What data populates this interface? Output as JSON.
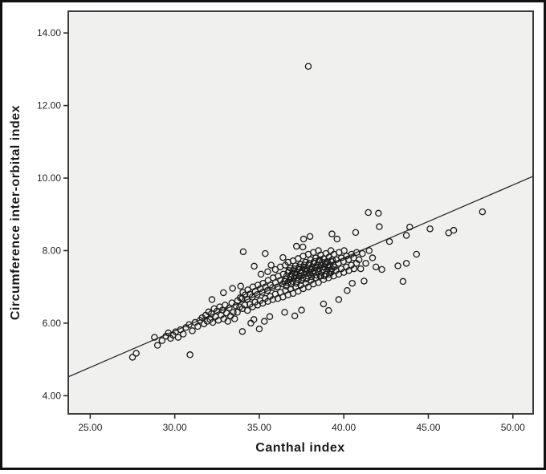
{
  "figure": {
    "xlabel": "Canthal index",
    "ylabel": "Circumference inter-orbital index"
  },
  "chart_data": {
    "type": "scatter",
    "title": "",
    "xlabel": "Canthal index",
    "ylabel": "Circumference inter-orbital index",
    "xlim": [
      23.7,
      51.2
    ],
    "ylim": [
      3.5,
      14.6
    ],
    "x_ticks": [
      25,
      30,
      35,
      40,
      45,
      50
    ],
    "y_ticks": [
      4,
      6,
      8,
      10,
      12,
      14
    ],
    "tick_decimals": 2,
    "grid": false,
    "legend": "none",
    "plot_bg": "#f0f0ee",
    "plot_border_color": "#3c3c3c",
    "frame_color": "#111111",
    "marker": {
      "shape": "open-circle",
      "radius": 3.6,
      "stroke": "#1c1c1c",
      "stroke_width": 1.3
    },
    "fit_line": {
      "x1": 23.7,
      "y1": 4.52,
      "x2": 51.2,
      "y2": 10.05,
      "stroke": "#2b2b2b",
      "stroke_width": 1.3
    },
    "outlier": [
      37.9,
      13.08
    ],
    "points": [
      [
        27.5,
        5.06
      ],
      [
        27.72,
        5.17
      ],
      [
        28.8,
        5.61
      ],
      [
        28.98,
        5.39
      ],
      [
        29.25,
        5.52
      ],
      [
        29.48,
        5.64
      ],
      [
        29.62,
        5.73
      ],
      [
        29.75,
        5.58
      ],
      [
        29.9,
        5.67
      ],
      [
        30.05,
        5.76
      ],
      [
        30.2,
        5.61
      ],
      [
        30.34,
        5.82
      ],
      [
        30.5,
        5.7
      ],
      [
        30.66,
        5.88
      ],
      [
        30.85,
        5.96
      ],
      [
        30.9,
        5.13
      ],
      [
        31.04,
        5.79
      ],
      [
        31.2,
        6.02
      ],
      [
        31.36,
        5.91
      ],
      [
        31.5,
        6.08
      ],
      [
        31.62,
        6.15
      ],
      [
        31.73,
        5.98
      ],
      [
        31.83,
        6.22
      ],
      [
        31.92,
        6.05
      ],
      [
        32.0,
        6.31
      ],
      [
        32.09,
        6.1
      ],
      [
        32.17,
        6.26
      ],
      [
        32.25,
        6.02
      ],
      [
        32.33,
        6.4
      ],
      [
        32.42,
        6.18
      ],
      [
        32.5,
        6.33
      ],
      [
        32.58,
        6.08
      ],
      [
        32.66,
        6.45
      ],
      [
        32.74,
        6.22
      ],
      [
        32.82,
        6.36
      ],
      [
        32.9,
        6.12
      ],
      [
        32.98,
        6.5
      ],
      [
        33.06,
        6.28
      ],
      [
        33.14,
        6.05
      ],
      [
        33.22,
        6.42
      ],
      [
        33.3,
        6.2
      ],
      [
        33.38,
        6.56
      ],
      [
        33.46,
        6.3
      ],
      [
        33.54,
        6.12
      ],
      [
        33.62,
        6.48
      ],
      [
        32.2,
        6.65
      ],
      [
        32.88,
        6.84
      ],
      [
        33.42,
        6.96
      ],
      [
        33.9,
        7.02
      ],
      [
        34.0,
        5.77
      ],
      [
        34.5,
        6.0
      ],
      [
        35.0,
        5.84
      ],
      [
        34.68,
        6.1
      ],
      [
        35.3,
        6.05
      ],
      [
        35.62,
        6.18
      ],
      [
        36.5,
        6.3
      ],
      [
        37.1,
        6.2
      ],
      [
        37.5,
        6.36
      ],
      [
        38.8,
        6.53
      ],
      [
        39.1,
        6.35
      ],
      [
        39.7,
        6.65
      ],
      [
        34.05,
        7.97
      ],
      [
        35.35,
        7.92
      ],
      [
        34.7,
        7.57
      ],
      [
        35.1,
        7.35
      ],
      [
        35.7,
        7.6
      ],
      [
        36.4,
        7.81
      ],
      [
        35.5,
        7.42
      ],
      [
        35.95,
        7.48
      ],
      [
        33.7,
        6.3
      ],
      [
        33.72,
        6.62
      ],
      [
        33.84,
        6.45
      ],
      [
        33.87,
        6.7
      ],
      [
        34.0,
        6.4
      ],
      [
        33.98,
        6.68
      ],
      [
        34.03,
        6.85
      ],
      [
        34.15,
        6.5
      ],
      [
        34.16,
        6.78
      ],
      [
        34.3,
        6.35
      ],
      [
        34.28,
        6.66
      ],
      [
        34.32,
        6.92
      ],
      [
        34.45,
        6.52
      ],
      [
        34.44,
        6.8
      ],
      [
        34.6,
        6.45
      ],
      [
        34.58,
        6.72
      ],
      [
        34.62,
        7.0
      ],
      [
        34.75,
        6.58
      ],
      [
        34.76,
        6.88
      ],
      [
        34.9,
        6.5
      ],
      [
        34.88,
        6.79
      ],
      [
        34.92,
        7.05
      ],
      [
        35.05,
        6.62
      ],
      [
        35.06,
        6.95
      ],
      [
        35.2,
        6.55
      ],
      [
        35.18,
        6.85
      ],
      [
        35.22,
        7.1
      ],
      [
        35.35,
        6.68
      ],
      [
        35.36,
        7.0
      ],
      [
        35.5,
        6.6
      ],
      [
        35.48,
        6.9
      ],
      [
        35.52,
        7.18
      ],
      [
        35.65,
        6.74
      ],
      [
        35.66,
        7.05
      ],
      [
        35.8,
        6.65
      ],
      [
        35.78,
        6.98
      ],
      [
        35.82,
        7.25
      ],
      [
        35.95,
        6.8
      ],
      [
        35.96,
        7.12
      ],
      [
        36.1,
        6.68
      ],
      [
        36.08,
        7.0
      ],
      [
        36.12,
        7.3
      ],
      [
        36.25,
        6.85
      ],
      [
        36.26,
        7.18
      ],
      [
        36.24,
        7.55
      ],
      [
        36.4,
        6.72
      ],
      [
        36.38,
        7.08
      ],
      [
        36.42,
        7.35
      ],
      [
        36.55,
        6.9
      ],
      [
        36.56,
        7.22
      ],
      [
        36.54,
        7.6
      ],
      [
        36.7,
        6.78
      ],
      [
        36.68,
        7.12
      ],
      [
        36.72,
        7.4
      ],
      [
        36.7,
        7.68
      ],
      [
        36.85,
        6.95
      ],
      [
        36.86,
        7.28
      ],
      [
        36.84,
        7.52
      ],
      [
        37.0,
        6.82
      ],
      [
        36.98,
        7.15
      ],
      [
        37.02,
        7.45
      ],
      [
        37.0,
        7.72
      ],
      [
        37.15,
        7.0
      ],
      [
        37.16,
        7.32
      ],
      [
        37.14,
        7.58
      ],
      [
        37.3,
        6.88
      ],
      [
        37.28,
        7.2
      ],
      [
        37.32,
        7.5
      ],
      [
        37.3,
        7.78
      ],
      [
        37.45,
        7.05
      ],
      [
        37.46,
        7.38
      ],
      [
        37.44,
        7.62
      ],
      [
        37.6,
        6.95
      ],
      [
        37.58,
        7.25
      ],
      [
        37.62,
        7.55
      ],
      [
        37.6,
        7.85
      ],
      [
        37.75,
        7.1
      ],
      [
        37.76,
        7.42
      ],
      [
        37.74,
        7.68
      ],
      [
        37.9,
        7.0
      ],
      [
        37.88,
        7.3
      ],
      [
        37.92,
        7.6
      ],
      [
        37.9,
        7.9
      ],
      [
        38.05,
        7.18
      ],
      [
        38.06,
        7.48
      ],
      [
        38.04,
        7.75
      ],
      [
        38.2,
        7.08
      ],
      [
        38.18,
        7.38
      ],
      [
        38.22,
        7.65
      ],
      [
        38.2,
        7.95
      ],
      [
        38.35,
        7.25
      ],
      [
        38.36,
        7.55
      ],
      [
        38.34,
        7.8
      ],
      [
        38.5,
        7.12
      ],
      [
        38.48,
        7.42
      ],
      [
        38.52,
        7.7
      ],
      [
        38.5,
        8.0
      ],
      [
        38.65,
        7.3
      ],
      [
        38.66,
        7.6
      ],
      [
        38.64,
        7.88
      ],
      [
        38.8,
        7.2
      ],
      [
        38.78,
        7.48
      ],
      [
        38.82,
        7.78
      ],
      [
        38.95,
        7.35
      ],
      [
        38.96,
        7.65
      ],
      [
        38.94,
        7.92
      ],
      [
        39.1,
        7.25
      ],
      [
        39.08,
        7.55
      ],
      [
        39.12,
        7.82
      ],
      [
        39.25,
        7.4
      ],
      [
        39.26,
        7.7
      ],
      [
        39.24,
        8.0
      ],
      [
        39.4,
        7.3
      ],
      [
        39.38,
        7.6
      ],
      [
        39.42,
        7.9
      ],
      [
        39.55,
        7.45
      ],
      [
        39.56,
        7.75
      ],
      [
        39.7,
        7.35
      ],
      [
        39.68,
        7.65
      ],
      [
        39.72,
        7.95
      ],
      [
        39.85,
        7.5
      ],
      [
        39.86,
        7.8
      ],
      [
        40.0,
        7.4
      ],
      [
        39.98,
        7.7
      ],
      [
        40.02,
        8.0
      ],
      [
        40.15,
        7.55
      ],
      [
        40.16,
        7.85
      ],
      [
        40.3,
        7.45
      ],
      [
        40.28,
        7.75
      ],
      [
        40.45,
        7.6
      ],
      [
        40.46,
        7.9
      ],
      [
        40.6,
        7.5
      ],
      [
        40.58,
        7.8
      ],
      [
        40.75,
        7.65
      ],
      [
        40.76,
        7.95
      ],
      [
        36.5,
        7.15
      ],
      [
        36.6,
        7.02
      ],
      [
        36.62,
        7.3
      ],
      [
        36.75,
        7.45
      ],
      [
        36.9,
        7.08
      ],
      [
        36.92,
        7.35
      ],
      [
        37.05,
        7.25
      ],
      [
        37.06,
        7.5
      ],
      [
        37.2,
        7.1
      ],
      [
        37.22,
        7.4
      ],
      [
        37.35,
        7.3
      ],
      [
        37.36,
        7.55
      ],
      [
        37.5,
        7.18
      ],
      [
        37.52,
        7.45
      ],
      [
        37.65,
        7.35
      ],
      [
        37.66,
        7.6
      ],
      [
        37.8,
        7.22
      ],
      [
        37.82,
        7.5
      ],
      [
        37.95,
        7.4
      ],
      [
        37.96,
        7.65
      ],
      [
        38.1,
        7.28
      ],
      [
        38.12,
        7.55
      ],
      [
        38.25,
        7.45
      ],
      [
        38.26,
        7.7
      ],
      [
        38.4,
        7.32
      ],
      [
        38.42,
        7.6
      ],
      [
        38.55,
        7.5
      ],
      [
        38.56,
        7.75
      ],
      [
        38.7,
        7.4
      ],
      [
        38.72,
        7.68
      ],
      [
        38.85,
        7.55
      ],
      [
        38.86,
        7.3
      ],
      [
        39.0,
        7.45
      ],
      [
        39.02,
        7.7
      ],
      [
        39.15,
        7.35
      ],
      [
        39.16,
        7.6
      ],
      [
        39.3,
        7.5
      ],
      [
        39.32,
        7.75
      ],
      [
        39.45,
        7.55
      ],
      [
        36.8,
        7.2
      ],
      [
        37.1,
        7.38
      ],
      [
        37.4,
        7.28
      ],
      [
        37.7,
        7.48
      ],
      [
        38.0,
        7.35
      ],
      [
        38.3,
        7.52
      ],
      [
        38.6,
        7.3
      ],
      [
        38.9,
        7.62
      ],
      [
        39.2,
        7.45
      ],
      [
        37.2,
        8.12
      ],
      [
        37.62,
        8.32
      ],
      [
        37.58,
        8.1
      ],
      [
        38.0,
        8.39
      ],
      [
        39.3,
        8.46
      ],
      [
        39.6,
        8.32
      ],
      [
        40.7,
        8.5
      ],
      [
        40.9,
        7.75
      ],
      [
        41.1,
        7.92
      ],
      [
        41.2,
        7.16
      ],
      [
        41.5,
        8.0
      ],
      [
        41.45,
        9.05
      ],
      [
        42.05,
        9.03
      ],
      [
        42.25,
        7.48
      ],
      [
        42.1,
        8.66
      ],
      [
        42.7,
        8.25
      ],
      [
        43.2,
        7.58
      ],
      [
        43.7,
        7.65
      ],
      [
        43.5,
        7.15
      ],
      [
        43.7,
        8.42
      ],
      [
        43.9,
        8.65
      ],
      [
        44.3,
        7.9
      ],
      [
        45.1,
        8.6
      ],
      [
        46.2,
        8.49
      ],
      [
        46.5,
        8.56
      ],
      [
        48.2,
        9.07
      ],
      [
        41.0,
        7.5
      ],
      [
        41.3,
        7.65
      ],
      [
        41.7,
        7.8
      ],
      [
        41.9,
        7.55
      ],
      [
        40.2,
        6.9
      ],
      [
        40.5,
        7.1
      ]
    ]
  }
}
